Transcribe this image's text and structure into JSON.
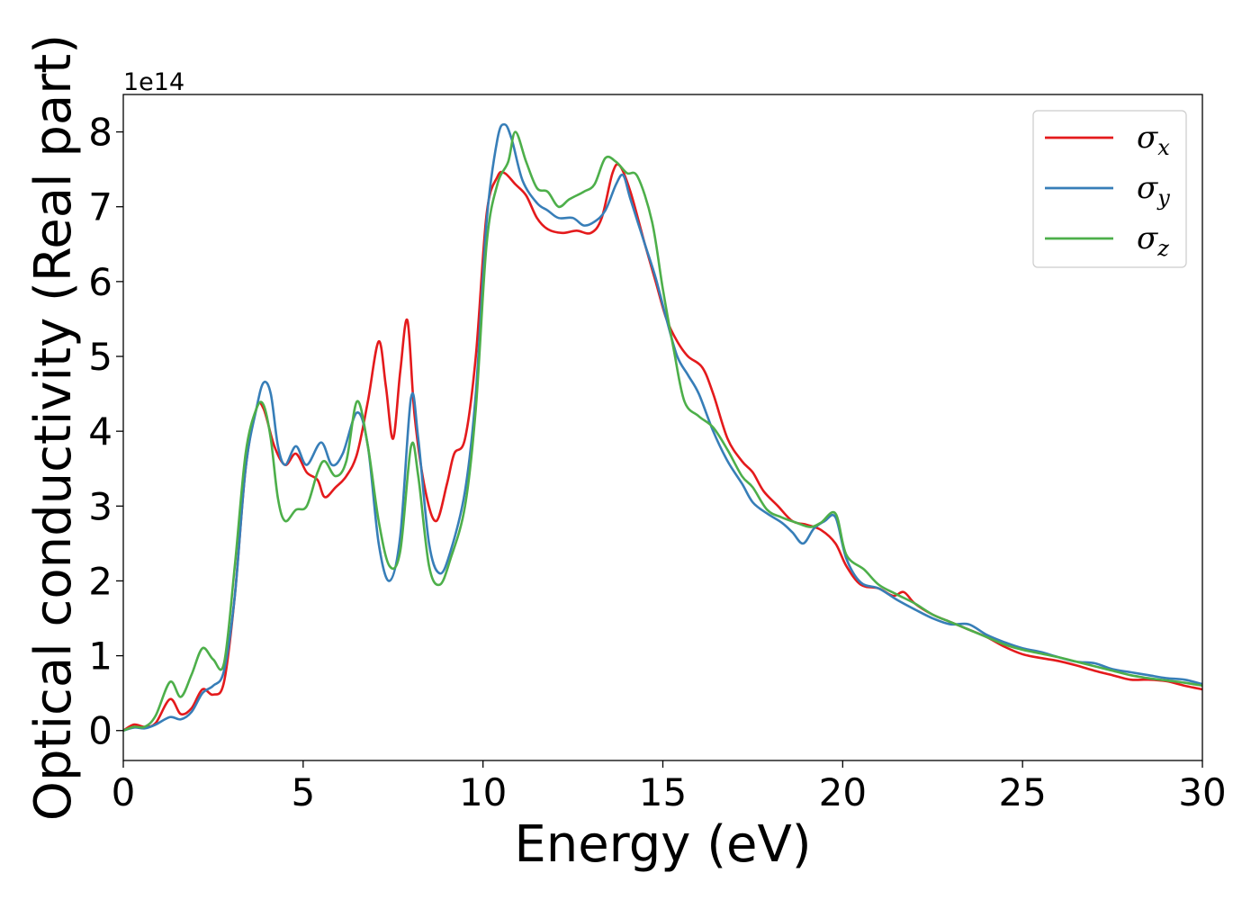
{
  "chart_data": {
    "type": "line",
    "xlabel": "Energy (eV)",
    "ylabel": "Optical conductivity (Real part)",
    "y_offset_label": "1e14",
    "xlim": [
      0,
      30
    ],
    "ylim": [
      -0.4,
      8.5
    ],
    "x_ticks": [
      0,
      5,
      10,
      15,
      20,
      25,
      30
    ],
    "y_ticks": [
      0,
      1,
      2,
      3,
      4,
      5,
      6,
      7,
      8
    ],
    "grid": false,
    "legend_placement": "top-right",
    "series": [
      {
        "name": "σ",
        "subscript": "x",
        "color": "#e41a1c",
        "points": [
          [
            0,
            0.0
          ],
          [
            0.3,
            0.08
          ],
          [
            0.6,
            0.05
          ],
          [
            0.9,
            0.1
          ],
          [
            1.3,
            0.42
          ],
          [
            1.6,
            0.22
          ],
          [
            1.9,
            0.3
          ],
          [
            2.2,
            0.55
          ],
          [
            2.5,
            0.48
          ],
          [
            2.8,
            0.65
          ],
          [
            3.1,
            1.8
          ],
          [
            3.4,
            3.5
          ],
          [
            3.7,
            4.3
          ],
          [
            3.9,
            4.3
          ],
          [
            4.2,
            3.8
          ],
          [
            4.5,
            3.55
          ],
          [
            4.8,
            3.7
          ],
          [
            5.1,
            3.45
          ],
          [
            5.4,
            3.35
          ],
          [
            5.6,
            3.12
          ],
          [
            5.9,
            3.25
          ],
          [
            6.2,
            3.4
          ],
          [
            6.5,
            3.7
          ],
          [
            6.8,
            4.4
          ],
          [
            7.1,
            5.2
          ],
          [
            7.3,
            4.6
          ],
          [
            7.5,
            3.9
          ],
          [
            7.7,
            4.8
          ],
          [
            7.9,
            5.48
          ],
          [
            8.1,
            4.2
          ],
          [
            8.4,
            3.2
          ],
          [
            8.7,
            2.8
          ],
          [
            9.0,
            3.3
          ],
          [
            9.2,
            3.7
          ],
          [
            9.5,
            3.9
          ],
          [
            9.8,
            5.0
          ],
          [
            10.1,
            6.9
          ],
          [
            10.4,
            7.4
          ],
          [
            10.6,
            7.45
          ],
          [
            10.9,
            7.3
          ],
          [
            11.2,
            7.15
          ],
          [
            11.5,
            6.85
          ],
          [
            11.8,
            6.7
          ],
          [
            12.2,
            6.65
          ],
          [
            12.6,
            6.68
          ],
          [
            13.0,
            6.65
          ],
          [
            13.3,
            6.85
          ],
          [
            13.6,
            7.45
          ],
          [
            13.8,
            7.55
          ],
          [
            14.1,
            7.2
          ],
          [
            14.5,
            6.5
          ],
          [
            14.8,
            6.0
          ],
          [
            15.1,
            5.5
          ],
          [
            15.4,
            5.2
          ],
          [
            15.7,
            5.0
          ],
          [
            16.1,
            4.85
          ],
          [
            16.4,
            4.5
          ],
          [
            16.8,
            3.9
          ],
          [
            17.2,
            3.6
          ],
          [
            17.5,
            3.45
          ],
          [
            17.8,
            3.2
          ],
          [
            18.2,
            3.0
          ],
          [
            18.6,
            2.8
          ],
          [
            19.0,
            2.75
          ],
          [
            19.4,
            2.68
          ],
          [
            19.8,
            2.5
          ],
          [
            20.1,
            2.2
          ],
          [
            20.5,
            1.95
          ],
          [
            21.0,
            1.9
          ],
          [
            21.4,
            1.8
          ],
          [
            21.7,
            1.85
          ],
          [
            22.0,
            1.7
          ],
          [
            22.5,
            1.55
          ],
          [
            23.0,
            1.45
          ],
          [
            23.5,
            1.35
          ],
          [
            24.0,
            1.25
          ],
          [
            24.5,
            1.12
          ],
          [
            25.0,
            1.02
          ],
          [
            25.5,
            0.97
          ],
          [
            26.0,
            0.93
          ],
          [
            26.5,
            0.87
          ],
          [
            27.0,
            0.8
          ],
          [
            27.5,
            0.74
          ],
          [
            28.0,
            0.68
          ],
          [
            28.5,
            0.68
          ],
          [
            29.0,
            0.66
          ],
          [
            29.5,
            0.6
          ],
          [
            30.0,
            0.55
          ]
        ]
      },
      {
        "name": "σ",
        "subscript": "y",
        "color": "#377eb8",
        "points": [
          [
            0,
            0.0
          ],
          [
            0.3,
            0.04
          ],
          [
            0.6,
            0.03
          ],
          [
            0.9,
            0.08
          ],
          [
            1.3,
            0.18
          ],
          [
            1.6,
            0.15
          ],
          [
            1.9,
            0.25
          ],
          [
            2.2,
            0.5
          ],
          [
            2.5,
            0.6
          ],
          [
            2.8,
            0.8
          ],
          [
            3.1,
            1.8
          ],
          [
            3.4,
            3.5
          ],
          [
            3.7,
            4.3
          ],
          [
            3.9,
            4.65
          ],
          [
            4.1,
            4.5
          ],
          [
            4.3,
            3.8
          ],
          [
            4.5,
            3.55
          ],
          [
            4.8,
            3.8
          ],
          [
            5.1,
            3.55
          ],
          [
            5.5,
            3.85
          ],
          [
            5.8,
            3.55
          ],
          [
            6.1,
            3.7
          ],
          [
            6.5,
            4.25
          ],
          [
            6.8,
            3.8
          ],
          [
            7.1,
            2.5
          ],
          [
            7.4,
            2.0
          ],
          [
            7.7,
            2.6
          ],
          [
            8.0,
            4.45
          ],
          [
            8.2,
            3.9
          ],
          [
            8.5,
            2.5
          ],
          [
            8.8,
            2.1
          ],
          [
            9.1,
            2.4
          ],
          [
            9.5,
            3.2
          ],
          [
            9.8,
            4.5
          ],
          [
            10.1,
            6.8
          ],
          [
            10.4,
            7.9
          ],
          [
            10.6,
            8.1
          ],
          [
            10.8,
            7.9
          ],
          [
            11.1,
            7.35
          ],
          [
            11.5,
            7.05
          ],
          [
            11.8,
            6.95
          ],
          [
            12.1,
            6.85
          ],
          [
            12.5,
            6.85
          ],
          [
            12.8,
            6.75
          ],
          [
            13.1,
            6.8
          ],
          [
            13.4,
            6.95
          ],
          [
            13.7,
            7.3
          ],
          [
            13.9,
            7.42
          ],
          [
            14.1,
            7.1
          ],
          [
            14.5,
            6.5
          ],
          [
            14.8,
            6.05
          ],
          [
            15.1,
            5.5
          ],
          [
            15.4,
            5.0
          ],
          [
            15.7,
            4.75
          ],
          [
            16.0,
            4.5
          ],
          [
            16.4,
            4.0
          ],
          [
            16.8,
            3.6
          ],
          [
            17.2,
            3.3
          ],
          [
            17.5,
            3.05
          ],
          [
            17.9,
            2.9
          ],
          [
            18.3,
            2.78
          ],
          [
            18.6,
            2.65
          ],
          [
            18.9,
            2.5
          ],
          [
            19.2,
            2.7
          ],
          [
            19.5,
            2.8
          ],
          [
            19.8,
            2.85
          ],
          [
            20.1,
            2.3
          ],
          [
            20.5,
            1.98
          ],
          [
            21.0,
            1.9
          ],
          [
            21.5,
            1.75
          ],
          [
            22.0,
            1.62
          ],
          [
            22.5,
            1.5
          ],
          [
            23.0,
            1.42
          ],
          [
            23.5,
            1.42
          ],
          [
            24.0,
            1.28
          ],
          [
            24.5,
            1.18
          ],
          [
            25.0,
            1.1
          ],
          [
            25.5,
            1.05
          ],
          [
            26.0,
            0.98
          ],
          [
            26.5,
            0.92
          ],
          [
            27.0,
            0.9
          ],
          [
            27.5,
            0.82
          ],
          [
            28.0,
            0.78
          ],
          [
            28.5,
            0.74
          ],
          [
            29.0,
            0.7
          ],
          [
            29.5,
            0.68
          ],
          [
            30.0,
            0.62
          ]
        ]
      },
      {
        "name": "σ",
        "subscript": "z",
        "color": "#4daf4a",
        "points": [
          [
            0,
            0.0
          ],
          [
            0.3,
            0.05
          ],
          [
            0.6,
            0.05
          ],
          [
            0.9,
            0.2
          ],
          [
            1.3,
            0.65
          ],
          [
            1.6,
            0.45
          ],
          [
            1.9,
            0.75
          ],
          [
            2.2,
            1.1
          ],
          [
            2.5,
            0.95
          ],
          [
            2.8,
            0.9
          ],
          [
            3.1,
            2.2
          ],
          [
            3.4,
            3.7
          ],
          [
            3.7,
            4.3
          ],
          [
            3.9,
            4.35
          ],
          [
            4.1,
            3.9
          ],
          [
            4.3,
            3.1
          ],
          [
            4.5,
            2.8
          ],
          [
            4.8,
            2.95
          ],
          [
            5.1,
            3.0
          ],
          [
            5.4,
            3.45
          ],
          [
            5.6,
            3.6
          ],
          [
            5.9,
            3.4
          ],
          [
            6.2,
            3.6
          ],
          [
            6.5,
            4.4
          ],
          [
            6.8,
            3.8
          ],
          [
            7.1,
            2.8
          ],
          [
            7.4,
            2.2
          ],
          [
            7.7,
            2.4
          ],
          [
            8.0,
            3.8
          ],
          [
            8.2,
            3.4
          ],
          [
            8.5,
            2.2
          ],
          [
            8.8,
            1.95
          ],
          [
            9.1,
            2.3
          ],
          [
            9.5,
            3.0
          ],
          [
            9.8,
            4.3
          ],
          [
            10.1,
            6.5
          ],
          [
            10.4,
            7.3
          ],
          [
            10.7,
            7.6
          ],
          [
            10.9,
            8.0
          ],
          [
            11.2,
            7.6
          ],
          [
            11.5,
            7.25
          ],
          [
            11.8,
            7.2
          ],
          [
            12.1,
            7.0
          ],
          [
            12.4,
            7.1
          ],
          [
            12.8,
            7.2
          ],
          [
            13.1,
            7.3
          ],
          [
            13.4,
            7.65
          ],
          [
            13.7,
            7.6
          ],
          [
            14.0,
            7.45
          ],
          [
            14.3,
            7.4
          ],
          [
            14.7,
            6.8
          ],
          [
            15.0,
            5.9
          ],
          [
            15.3,
            5.1
          ],
          [
            15.6,
            4.4
          ],
          [
            16.0,
            4.2
          ],
          [
            16.4,
            4.05
          ],
          [
            16.8,
            3.75
          ],
          [
            17.2,
            3.4
          ],
          [
            17.5,
            3.25
          ],
          [
            17.9,
            2.95
          ],
          [
            18.3,
            2.85
          ],
          [
            18.7,
            2.78
          ],
          [
            19.1,
            2.72
          ],
          [
            19.4,
            2.78
          ],
          [
            19.8,
            2.9
          ],
          [
            20.1,
            2.35
          ],
          [
            20.6,
            2.15
          ],
          [
            21.0,
            1.95
          ],
          [
            21.5,
            1.82
          ],
          [
            22.0,
            1.7
          ],
          [
            22.5,
            1.55
          ],
          [
            23.0,
            1.45
          ],
          [
            23.5,
            1.35
          ],
          [
            24.0,
            1.25
          ],
          [
            24.5,
            1.15
          ],
          [
            25.0,
            1.08
          ],
          [
            25.5,
            1.03
          ],
          [
            26.0,
            0.98
          ],
          [
            26.5,
            0.92
          ],
          [
            27.0,
            0.86
          ],
          [
            27.5,
            0.8
          ],
          [
            28.0,
            0.74
          ],
          [
            28.5,
            0.7
          ],
          [
            29.0,
            0.67
          ],
          [
            29.5,
            0.64
          ],
          [
            30.0,
            0.6
          ]
        ]
      }
    ]
  }
}
